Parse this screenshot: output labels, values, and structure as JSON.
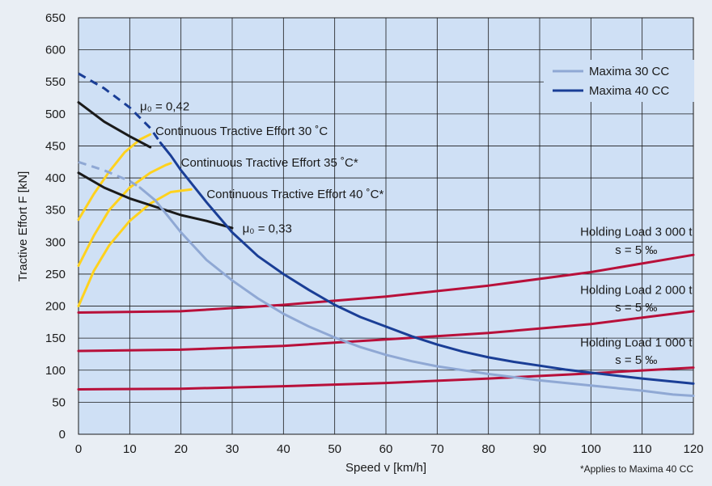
{
  "chart_data": {
    "type": "line",
    "xlabel": "Speed v  [km/h]",
    "ylabel": "Tractive Effort F [kN]",
    "xlim": [
      0,
      120
    ],
    "ylim": [
      0,
      650
    ],
    "x_ticks": [
      0,
      10,
      20,
      30,
      40,
      50,
      60,
      70,
      80,
      90,
      100,
      110,
      120
    ],
    "y_ticks": [
      0,
      50,
      100,
      150,
      200,
      250,
      300,
      350,
      400,
      450,
      500,
      550,
      600,
      650
    ],
    "grid": true,
    "legend_position": "top-right",
    "colors": {
      "maxima30": "#8fa8d4",
      "maxima40": "#1a3e96",
      "adhesion": "#1a1a1a",
      "continuous": "#ffd21e",
      "holding": "#b8103a",
      "plot_bg": "#cfe0f5",
      "grid": "#1a1a1a"
    },
    "legend": [
      {
        "name": "Maxima 30 CC",
        "color": "#8fa8d4"
      },
      {
        "name": "Maxima 40 CC",
        "color": "#1a3e96"
      }
    ],
    "series": [
      {
        "name": "Maxima 30 CC",
        "color": "#8fa8d4",
        "dashed_points": [
          [
            0,
            425
          ],
          [
            5,
            412
          ],
          [
            10,
            395
          ],
          [
            12,
            385
          ]
        ],
        "points": [
          [
            12,
            385
          ],
          [
            15,
            365
          ],
          [
            20,
            315
          ],
          [
            25,
            272
          ],
          [
            30,
            240
          ],
          [
            35,
            212
          ],
          [
            40,
            188
          ],
          [
            45,
            168
          ],
          [
            50,
            151
          ],
          [
            55,
            136
          ],
          [
            60,
            124
          ],
          [
            65,
            114
          ],
          [
            70,
            106
          ],
          [
            80,
            94
          ],
          [
            90,
            84
          ],
          [
            100,
            76
          ],
          [
            110,
            68
          ],
          [
            116,
            62
          ],
          [
            120,
            60
          ]
        ]
      },
      {
        "name": "Maxima 40 CC",
        "color": "#1a3e96",
        "dashed_points": [
          [
            0,
            563
          ],
          [
            5,
            540
          ],
          [
            10,
            510
          ],
          [
            14,
            478
          ],
          [
            16,
            455
          ]
        ],
        "points": [
          [
            16,
            455
          ],
          [
            18,
            435
          ],
          [
            20,
            412
          ],
          [
            25,
            362
          ],
          [
            30,
            315
          ],
          [
            35,
            278
          ],
          [
            40,
            250
          ],
          [
            45,
            225
          ],
          [
            50,
            202
          ],
          [
            55,
            183
          ],
          [
            60,
            168
          ],
          [
            65,
            153
          ],
          [
            70,
            140
          ],
          [
            75,
            129
          ],
          [
            80,
            120
          ],
          [
            85,
            113
          ],
          [
            90,
            107
          ],
          [
            95,
            101
          ],
          [
            100,
            96
          ],
          [
            110,
            87
          ],
          [
            120,
            79
          ]
        ]
      },
      {
        "name": "Adhesion 0,42",
        "color": "#1a1a1a",
        "points": [
          [
            0,
            518
          ],
          [
            5,
            488
          ],
          [
            10,
            465
          ],
          [
            14,
            448
          ]
        ]
      },
      {
        "name": "Adhesion 0,33",
        "color": "#1a1a1a",
        "points": [
          [
            0,
            408
          ],
          [
            5,
            385
          ],
          [
            10,
            368
          ],
          [
            15,
            355
          ],
          [
            20,
            342
          ],
          [
            25,
            333
          ],
          [
            30,
            322
          ]
        ]
      },
      {
        "name": "Continuous 30",
        "color": "#ffd21e",
        "points": [
          [
            0,
            335
          ],
          [
            3,
            375
          ],
          [
            6,
            410
          ],
          [
            9,
            440
          ],
          [
            12,
            460
          ],
          [
            14,
            468
          ]
        ]
      },
      {
        "name": "Continuous 35",
        "color": "#ffd21e",
        "points": [
          [
            0,
            263
          ],
          [
            3,
            310
          ],
          [
            6,
            350
          ],
          [
            10,
            385
          ],
          [
            14,
            408
          ],
          [
            17,
            420
          ],
          [
            18,
            423
          ]
        ]
      },
      {
        "name": "Continuous 40",
        "color": "#ffd21e",
        "points": [
          [
            0,
            200
          ],
          [
            3,
            255
          ],
          [
            6,
            295
          ],
          [
            10,
            333
          ],
          [
            14,
            360
          ],
          [
            18,
            378
          ],
          [
            22,
            382
          ]
        ]
      },
      {
        "name": "Holding 3000",
        "color": "#b8103a",
        "points": [
          [
            0,
            190
          ],
          [
            20,
            192
          ],
          [
            40,
            202
          ],
          [
            60,
            215
          ],
          [
            80,
            232
          ],
          [
            100,
            253
          ],
          [
            120,
            280
          ]
        ]
      },
      {
        "name": "Holding 2000",
        "color": "#b8103a",
        "points": [
          [
            0,
            130
          ],
          [
            20,
            132
          ],
          [
            40,
            138
          ],
          [
            60,
            148
          ],
          [
            80,
            158
          ],
          [
            100,
            172
          ],
          [
            120,
            192
          ]
        ]
      },
      {
        "name": "Holding 1000",
        "color": "#b8103a",
        "points": [
          [
            0,
            70
          ],
          [
            20,
            71
          ],
          [
            40,
            75
          ],
          [
            60,
            80
          ],
          [
            80,
            87
          ],
          [
            100,
            95
          ],
          [
            120,
            104
          ]
        ]
      }
    ],
    "annotations": [
      {
        "id": "mu042",
        "text": "μ₀ = 0,42",
        "x": 12,
        "y": 512
      },
      {
        "id": "cte30",
        "text": "Continuous Tractive Effort  30 ˚C",
        "x": 15,
        "y": 473
      },
      {
        "id": "cte35",
        "text": "Continuous Tractive Effort  35 ˚C*",
        "x": 20,
        "y": 424
      },
      {
        "id": "cte40",
        "text": "Continuous Tractive Effort  40 ˚C*",
        "x": 25,
        "y": 375
      },
      {
        "id": "mu033",
        "text": "μ₀ = 0,33",
        "x": 32,
        "y": 321
      },
      {
        "id": "hl3000a",
        "text": "Holding Load 3 000 t",
        "x": 100,
        "y": 316
      },
      {
        "id": "hl3000b",
        "text": "s = 5 ‰",
        "x": 100,
        "y": 288
      },
      {
        "id": "hl2000a",
        "text": "Holding Load 2 000 t",
        "x": 100,
        "y": 225
      },
      {
        "id": "hl2000b",
        "text": "s = 5 ‰",
        "x": 100,
        "y": 198
      },
      {
        "id": "hl1000a",
        "text": "Holding Load 1 000 t",
        "x": 100,
        "y": 143
      },
      {
        "id": "hl1000b",
        "text": "s = 5 ‰",
        "x": 100,
        "y": 116
      }
    ],
    "footnote": "*Applies to Maxima 40 CC"
  }
}
